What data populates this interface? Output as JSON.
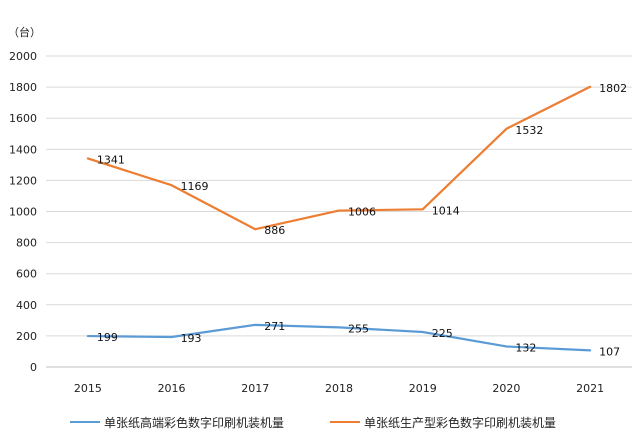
{
  "chart_data": {
    "type": "line",
    "ylabel": "（台）",
    "categories": [
      "2015",
      "2016",
      "2017",
      "2018",
      "2019",
      "2020",
      "2021"
    ],
    "ylim": [
      0,
      2000
    ],
    "yticks": [
      0,
      200,
      400,
      600,
      800,
      1000,
      1200,
      1400,
      1600,
      1800,
      2000
    ],
    "grid": true,
    "legend_position": "bottom",
    "series": [
      {
        "name": "单张纸高端彩色数字印刷机装机量",
        "color": "#5b9bd5",
        "values": [
          199,
          193,
          271,
          255,
          225,
          132,
          107
        ]
      },
      {
        "name": "单张纸生产型彩色数字印刷机装机量",
        "color": "#ed7d31",
        "values": [
          1341,
          1169,
          886,
          1006,
          1014,
          1532,
          1802
        ]
      }
    ]
  }
}
